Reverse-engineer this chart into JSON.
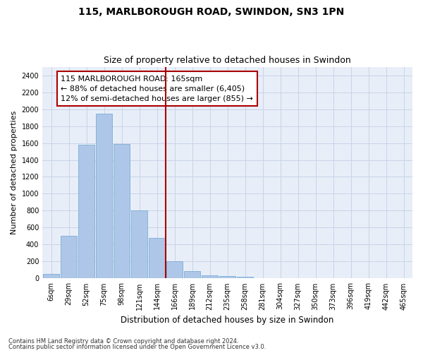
{
  "title": "115, MARLBOROUGH ROAD, SWINDON, SN3 1PN",
  "subtitle": "Size of property relative to detached houses in Swindon",
  "xlabel": "Distribution of detached houses by size in Swindon",
  "ylabel": "Number of detached properties",
  "footer_line1": "Contains HM Land Registry data © Crown copyright and database right 2024.",
  "footer_line2": "Contains public sector information licensed under the Open Government Licence v3.0.",
  "bar_labels": [
    "6sqm",
    "29sqm",
    "52sqm",
    "75sqm",
    "98sqm",
    "121sqm",
    "144sqm",
    "166sqm",
    "189sqm",
    "212sqm",
    "235sqm",
    "258sqm",
    "281sqm",
    "304sqm",
    "327sqm",
    "350sqm",
    "373sqm",
    "396sqm",
    "419sqm",
    "442sqm",
    "465sqm"
  ],
  "bar_values": [
    50,
    500,
    1580,
    1950,
    1590,
    800,
    480,
    200,
    90,
    40,
    30,
    20,
    0,
    0,
    0,
    0,
    0,
    0,
    0,
    0,
    0
  ],
  "bar_color": "#aec6e8",
  "bar_edge_color": "#7aafd4",
  "vline_index": 7,
  "vline_color": "#aa0000",
  "annotation_text": "115 MARLBOROUGH ROAD: 165sqm\n← 88% of detached houses are smaller (6,405)\n12% of semi-detached houses are larger (855) →",
  "annotation_box_color": "#aa0000",
  "ylim": [
    0,
    2500
  ],
  "yticks": [
    0,
    200,
    400,
    600,
    800,
    1000,
    1200,
    1400,
    1600,
    1800,
    2000,
    2200,
    2400
  ],
  "grid_color": "#c8d4e8",
  "background_color": "#e8eef8",
  "title_fontsize": 10,
  "subtitle_fontsize": 9,
  "xlabel_fontsize": 8.5,
  "ylabel_fontsize": 8,
  "tick_fontsize": 7,
  "annotation_fontsize": 8,
  "footer_fontsize": 6
}
